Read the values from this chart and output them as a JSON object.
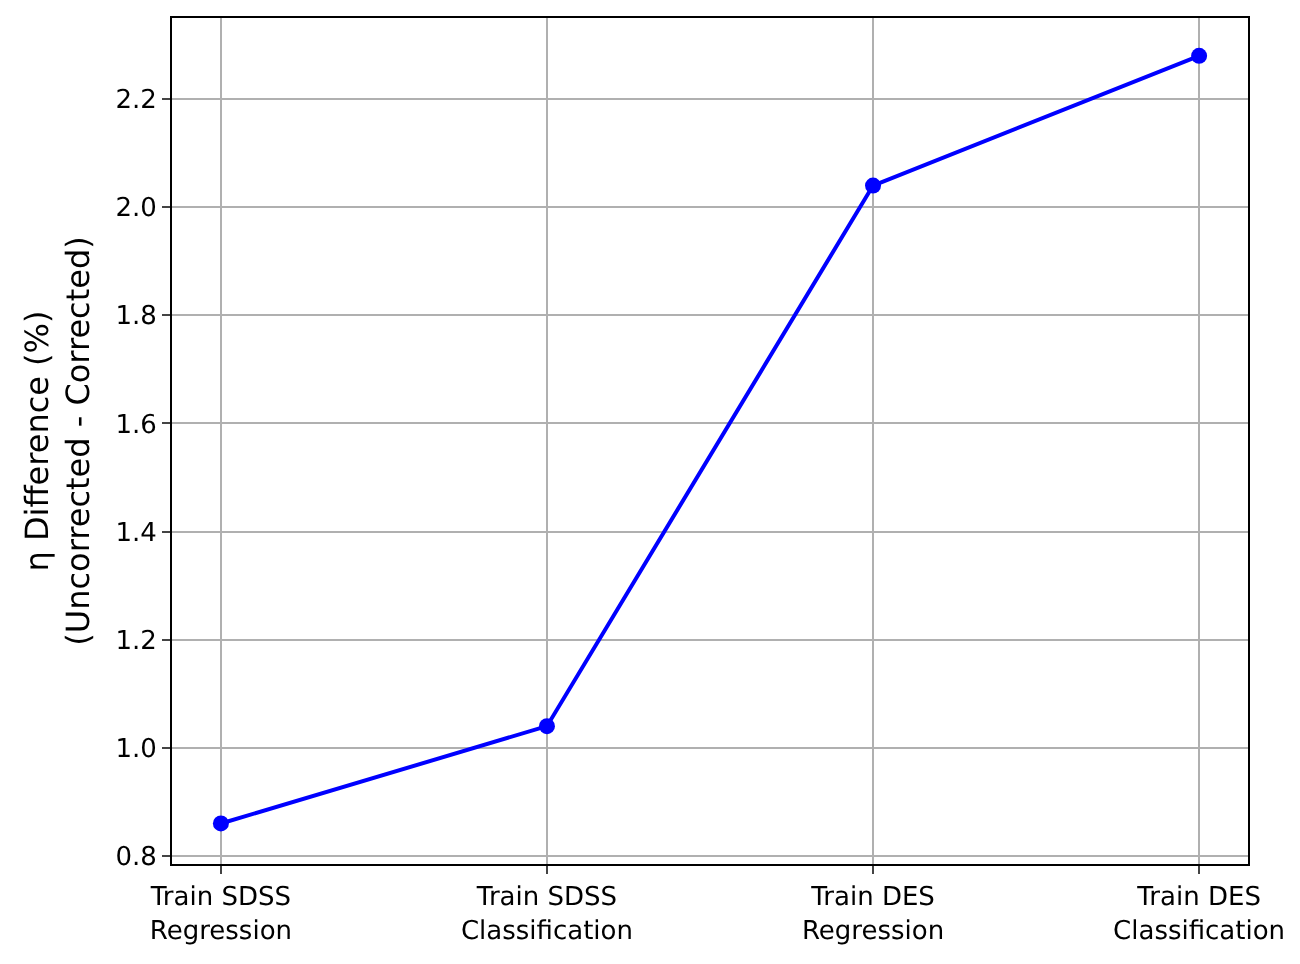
{
  "chart_data": {
    "type": "line",
    "ylabel": "η Difference (%)\n(Uncorrected - Corrected)",
    "categories": [
      "Train SDSS\nRegression",
      "Train SDSS\nClassification",
      "Train DES\nRegression",
      "Train DES\nClassification"
    ],
    "series": [
      {
        "color": "#0000ff",
        "values": [
          0.86,
          1.04,
          2.04,
          2.28
        ]
      }
    ],
    "ylim": [
      0.785,
      2.35
    ],
    "yticks": [
      {
        "value": 0.8,
        "label": "0.8"
      },
      {
        "value": 1.0,
        "label": "1.0"
      },
      {
        "value": 1.2,
        "label": "1.2"
      },
      {
        "value": 1.4,
        "label": "1.4"
      },
      {
        "value": 1.6,
        "label": "1.6"
      },
      {
        "value": 1.8,
        "label": "1.8"
      },
      {
        "value": 2.0,
        "label": "2.0"
      },
      {
        "value": 2.2,
        "label": "2.2"
      }
    ],
    "grid": true,
    "marker": "circle",
    "line_style": "solid",
    "legend": false
  }
}
